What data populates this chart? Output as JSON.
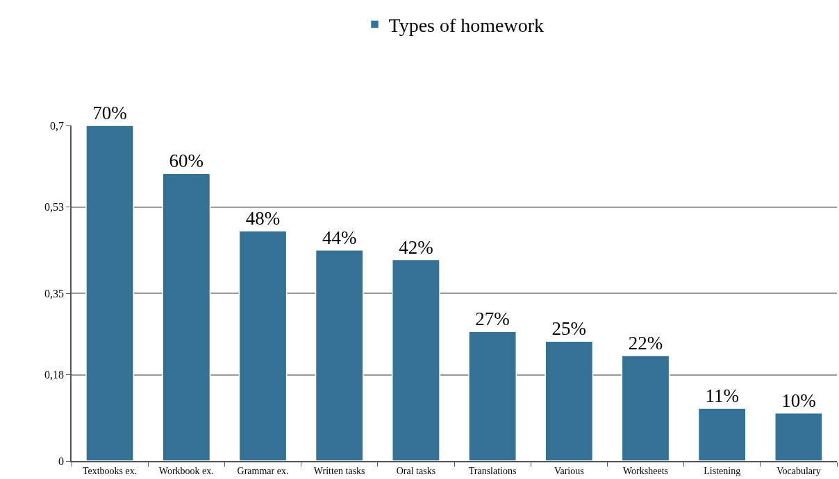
{
  "chart_data": {
    "type": "bar",
    "categories": [
      "Textbooks ex.",
      "Workbook ex.",
      "Grammar ex.",
      "Written tasks",
      "Oral tasks",
      "Translations",
      "Various",
      "Worksheets",
      "Listening",
      "Vocabulary"
    ],
    "series": [
      {
        "name": "Types of homework",
        "color": "#357194",
        "values": [
          0.7,
          0.6,
          0.48,
          0.44,
          0.42,
          0.27,
          0.25,
          0.22,
          0.11,
          0.1
        ],
        "value_labels": [
          "70%",
          "60%",
          "48%",
          "44%",
          "42%",
          "27%",
          "25%",
          "22%",
          "11%",
          "10%"
        ]
      }
    ],
    "ylim": [
      0,
      0.7
    ],
    "yticks": [
      0,
      {
        "value": 0.18,
        "label": "0,18"
      },
      {
        "value": 0.35,
        "label": "0,35"
      },
      {
        "value": 0.53,
        "label": "0,53"
      },
      {
        "value": 0.7,
        "label": "0,7"
      }
    ],
    "grid": "y",
    "legend": "top"
  }
}
